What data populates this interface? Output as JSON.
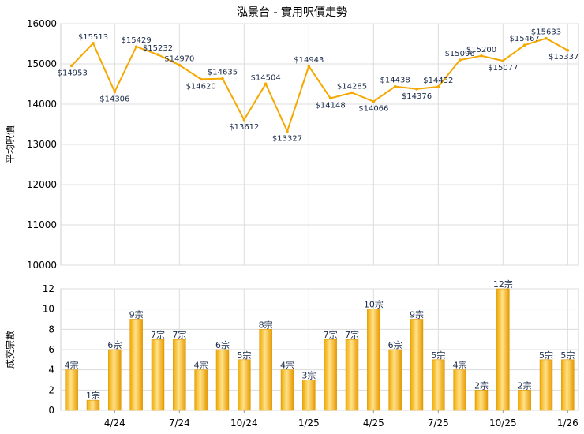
{
  "chart_data": [
    {
      "type": "line",
      "title": "泓景台 - 實用呎價走勢",
      "ylabel": "平均呎價",
      "ylim": [
        10000,
        16000
      ],
      "yticks": [
        10000,
        11000,
        12000,
        13000,
        14000,
        15000,
        16000
      ],
      "value_prefix": "$",
      "color": "#f5a800",
      "values": [
        14953,
        15513,
        14306,
        15429,
        15232,
        14970,
        14620,
        14635,
        13612,
        14504,
        13327,
        14943,
        14148,
        14285,
        14066,
        14438,
        14376,
        14432,
        15096,
        15200,
        15077,
        15467,
        15633,
        15337
      ]
    },
    {
      "type": "bar",
      "ylabel": "成交宗數",
      "ylim": [
        0,
        12
      ],
      "yticks": [
        0,
        2,
        4,
        6,
        8,
        10,
        12
      ],
      "label_suffix": "宗",
      "color": "#f5a800",
      "values": [
        4,
        1,
        6,
        9,
        7,
        7,
        4,
        6,
        5,
        8,
        4,
        3,
        7,
        7,
        10,
        6,
        9,
        5,
        4,
        2,
        12,
        2,
        5,
        5
      ],
      "x_tick_labels": [
        {
          "index": 2,
          "label": "4/24"
        },
        {
          "index": 5,
          "label": "7/24"
        },
        {
          "index": 8,
          "label": "10/24"
        },
        {
          "index": 11,
          "label": "1/25"
        },
        {
          "index": 14,
          "label": "4/25"
        },
        {
          "index": 17,
          "label": "7/25"
        },
        {
          "index": 20,
          "label": "10/25"
        },
        {
          "index": 23,
          "label": "1/26"
        }
      ]
    }
  ]
}
